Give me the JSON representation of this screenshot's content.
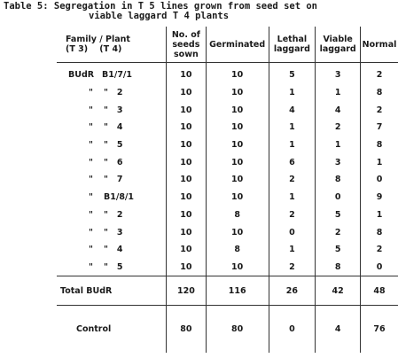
{
  "caption": {
    "line1": "Table 5: Segregation in T 5 lines grown from seed set on",
    "line2": "viable laggard T 4 plants"
  },
  "headers": {
    "family_plant_line1": "Family / Plant",
    "family_plant_line2": "(T 3)    (T 4)",
    "seeds_sown": "No. of seeds sown",
    "germinated": "Germinated",
    "lethal_laggard": "Lethal laggard",
    "viable_laggard": "Viable laggard",
    "normal": "Normal"
  },
  "rows": [
    {
      "family": "BUdR",
      "plant": "B1/7/1",
      "sown": "10",
      "germinated": "10",
      "lethal": "5",
      "viable": "3",
      "normal": "2"
    },
    {
      "family": "\"",
      "plant": "\"   2",
      "sown": "10",
      "germinated": "10",
      "lethal": "1",
      "viable": "1",
      "normal": "8"
    },
    {
      "family": "\"",
      "plant": "\"   3",
      "sown": "10",
      "germinated": "10",
      "lethal": "4",
      "viable": "4",
      "normal": "2"
    },
    {
      "family": "\"",
      "plant": "\"   4",
      "sown": "10",
      "germinated": "10",
      "lethal": "1",
      "viable": "2",
      "normal": "7"
    },
    {
      "family": "\"",
      "plant": "\"   5",
      "sown": "10",
      "germinated": "10",
      "lethal": "1",
      "viable": "1",
      "normal": "8"
    },
    {
      "family": "\"",
      "plant": "\"   6",
      "sown": "10",
      "germinated": "10",
      "lethal": "6",
      "viable": "3",
      "normal": "1"
    },
    {
      "family": "\"",
      "plant": "\"   7",
      "sown": "10",
      "germinated": "10",
      "lethal": "2",
      "viable": "8",
      "normal": "0"
    },
    {
      "family": "\"",
      "plant": "B1/8/1",
      "sown": "10",
      "germinated": "10",
      "lethal": "1",
      "viable": "0",
      "normal": "9"
    },
    {
      "family": "\"",
      "plant": "\"   2",
      "sown": "10",
      "germinated": "8",
      "lethal": "2",
      "viable": "5",
      "normal": "1"
    },
    {
      "family": "\"",
      "plant": "\"   3",
      "sown": "10",
      "germinated": "10",
      "lethal": "0",
      "viable": "2",
      "normal": "8"
    },
    {
      "family": "\"",
      "plant": "\"   4",
      "sown": "10",
      "germinated": "8",
      "lethal": "1",
      "viable": "5",
      "normal": "2"
    },
    {
      "family": "\"",
      "plant": "\"   5",
      "sown": "10",
      "germinated": "10",
      "lethal": "2",
      "viable": "8",
      "normal": "0"
    }
  ],
  "total": {
    "label": "Total BUdR",
    "sown": "120",
    "germinated": "116",
    "lethal": "26",
    "viable": "42",
    "normal": "48"
  },
  "control": {
    "label": "Control",
    "sown": "80",
    "germinated": "80",
    "lethal": "0",
    "viable": "4",
    "normal": "76"
  }
}
